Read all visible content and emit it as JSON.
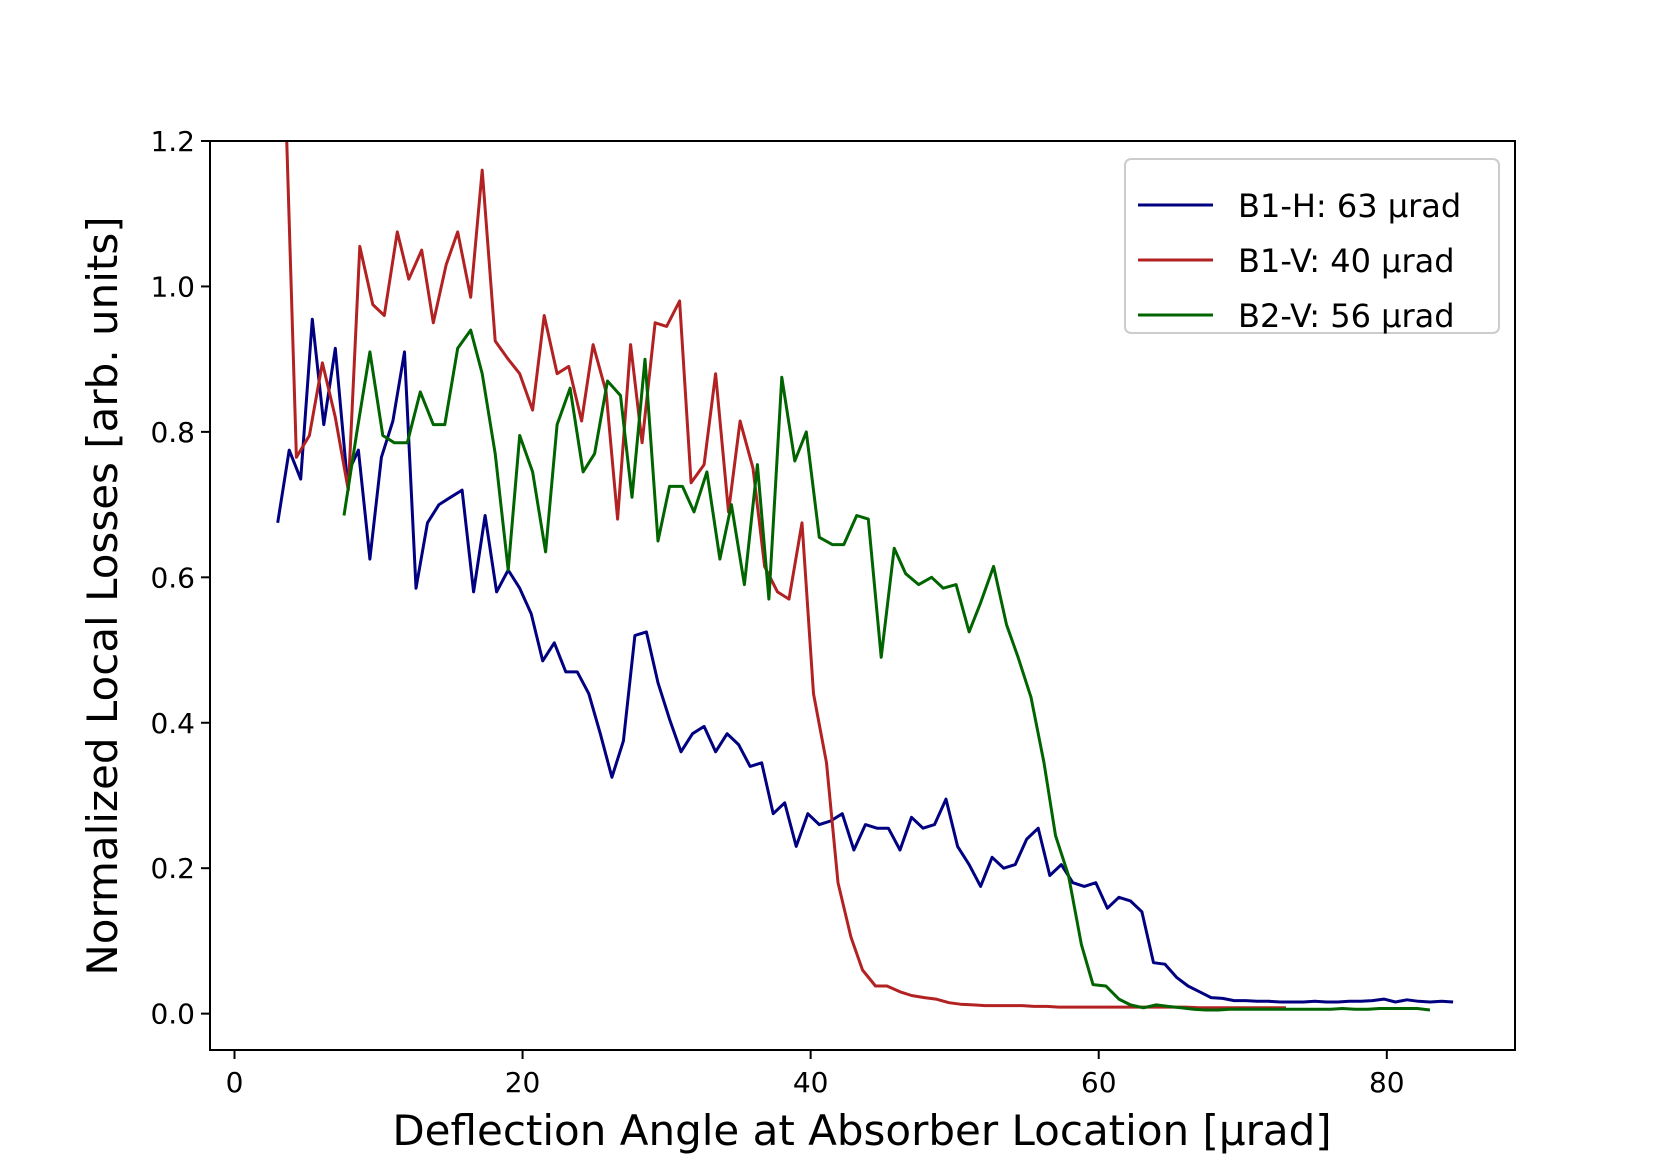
{
  "chart_data": {
    "type": "line",
    "title": "",
    "xlabel": "Deflection Angle at Absorber Location [μrad]",
    "ylabel": "Normalized Local Losses [arb. units]",
    "xlim": [
      -1.7,
      88.9
    ],
    "ylim": [
      -0.05,
      1.2
    ],
    "xticks": [
      0,
      20,
      40,
      60,
      80
    ],
    "yticks": [
      0.0,
      0.2,
      0.4,
      0.6,
      0.8,
      1.0,
      1.2
    ],
    "xtick_labels": [
      "0",
      "20",
      "40",
      "60",
      "80"
    ],
    "ytick_labels": [
      "0.0",
      "0.2",
      "0.4",
      "0.6",
      "0.8",
      "1.0",
      "1.2"
    ],
    "grid": false,
    "legend_position": "top-right",
    "series": [
      {
        "name": "B1-H: 63 μrad",
        "color": "#000080",
        "points": [
          [
            3.0,
            0.675
          ],
          [
            3.8,
            0.775
          ],
          [
            4.6,
            0.735
          ],
          [
            5.4,
            0.955
          ],
          [
            6.2,
            0.81
          ],
          [
            7.0,
            0.915
          ],
          [
            7.8,
            0.74
          ],
          [
            8.6,
            0.775
          ],
          [
            9.4,
            0.625
          ],
          [
            10.2,
            0.765
          ],
          [
            11.0,
            0.815
          ],
          [
            11.8,
            0.91
          ],
          [
            12.6,
            0.585
          ],
          [
            13.4,
            0.675
          ],
          [
            14.2,
            0.7
          ],
          [
            15.0,
            0.71
          ],
          [
            15.8,
            0.72
          ],
          [
            16.6,
            0.58
          ],
          [
            17.4,
            0.685
          ],
          [
            18.2,
            0.58
          ],
          [
            19.0,
            0.61
          ],
          [
            19.8,
            0.585
          ],
          [
            20.6,
            0.55
          ],
          [
            21.4,
            0.485
          ],
          [
            22.2,
            0.51
          ],
          [
            23.0,
            0.47
          ],
          [
            23.8,
            0.47
          ],
          [
            24.6,
            0.44
          ],
          [
            25.4,
            0.385
          ],
          [
            26.2,
            0.325
          ],
          [
            27.0,
            0.375
          ],
          [
            27.8,
            0.52
          ],
          [
            28.6,
            0.525
          ],
          [
            29.4,
            0.455
          ],
          [
            30.2,
            0.405
          ],
          [
            31.0,
            0.36
          ],
          [
            31.8,
            0.385
          ],
          [
            32.6,
            0.395
          ],
          [
            33.4,
            0.36
          ],
          [
            34.2,
            0.385
          ],
          [
            35.0,
            0.37
          ],
          [
            35.8,
            0.34
          ],
          [
            36.6,
            0.345
          ],
          [
            37.4,
            0.275
          ],
          [
            38.2,
            0.29
          ],
          [
            39.0,
            0.23
          ],
          [
            39.8,
            0.275
          ],
          [
            40.6,
            0.26
          ],
          [
            41.4,
            0.265
          ],
          [
            42.2,
            0.275
          ],
          [
            43.0,
            0.225
          ],
          [
            43.8,
            0.26
          ],
          [
            44.6,
            0.255
          ],
          [
            45.4,
            0.255
          ],
          [
            46.2,
            0.225
          ],
          [
            47.0,
            0.27
          ],
          [
            47.8,
            0.255
          ],
          [
            48.6,
            0.26
          ],
          [
            49.4,
            0.295
          ],
          [
            50.2,
            0.23
          ],
          [
            51.0,
            0.205
          ],
          [
            51.8,
            0.175
          ],
          [
            52.6,
            0.215
          ],
          [
            53.4,
            0.2
          ],
          [
            54.2,
            0.205
          ],
          [
            55.0,
            0.24
          ],
          [
            55.8,
            0.255
          ],
          [
            56.6,
            0.19
          ],
          [
            57.4,
            0.205
          ],
          [
            58.2,
            0.18
          ],
          [
            59.0,
            0.175
          ],
          [
            59.8,
            0.18
          ],
          [
            60.6,
            0.145
          ],
          [
            61.4,
            0.16
          ],
          [
            62.2,
            0.155
          ],
          [
            63.0,
            0.14
          ],
          [
            63.8,
            0.07
          ],
          [
            64.6,
            0.068
          ],
          [
            65.4,
            0.05
          ],
          [
            66.2,
            0.038
          ],
          [
            67.0,
            0.03
          ],
          [
            67.8,
            0.022
          ],
          [
            68.6,
            0.021
          ],
          [
            69.4,
            0.018
          ],
          [
            70.2,
            0.018
          ],
          [
            71.0,
            0.017
          ],
          [
            71.8,
            0.017
          ],
          [
            72.6,
            0.016
          ],
          [
            73.4,
            0.016
          ],
          [
            74.2,
            0.016
          ],
          [
            75.0,
            0.017
          ],
          [
            75.8,
            0.016
          ],
          [
            76.6,
            0.016
          ],
          [
            77.4,
            0.017
          ],
          [
            78.2,
            0.017
          ],
          [
            79.0,
            0.018
          ],
          [
            79.8,
            0.02
          ],
          [
            80.6,
            0.016
          ],
          [
            81.4,
            0.019
          ],
          [
            82.2,
            0.017
          ],
          [
            83.0,
            0.016
          ],
          [
            83.8,
            0.017
          ],
          [
            84.6,
            0.016
          ]
        ]
      },
      {
        "name": "B1-V: 40 μrad",
        "color": "#b22222",
        "points": [
          [
            3.6,
            1.22
          ],
          [
            4.3,
            0.765
          ],
          [
            5.2,
            0.795
          ],
          [
            6.1,
            0.895
          ],
          [
            7.0,
            0.82
          ],
          [
            7.9,
            0.72
          ],
          [
            8.7,
            1.055
          ],
          [
            9.6,
            0.975
          ],
          [
            10.4,
            0.96
          ],
          [
            11.3,
            1.075
          ],
          [
            12.1,
            1.01
          ],
          [
            13.0,
            1.05
          ],
          [
            13.8,
            0.95
          ],
          [
            14.7,
            1.03
          ],
          [
            15.5,
            1.075
          ],
          [
            16.4,
            0.985
          ],
          [
            17.2,
            1.16
          ],
          [
            18.1,
            0.925
          ],
          [
            19.0,
            0.9
          ],
          [
            19.8,
            0.88
          ],
          [
            20.7,
            0.83
          ],
          [
            21.5,
            0.96
          ],
          [
            22.4,
            0.88
          ],
          [
            23.2,
            0.89
          ],
          [
            24.1,
            0.815
          ],
          [
            24.9,
            0.92
          ],
          [
            25.8,
            0.855
          ],
          [
            26.6,
            0.68
          ],
          [
            27.5,
            0.92
          ],
          [
            28.3,
            0.785
          ],
          [
            29.2,
            0.95
          ],
          [
            30.0,
            0.945
          ],
          [
            30.9,
            0.98
          ],
          [
            31.7,
            0.73
          ],
          [
            32.6,
            0.755
          ],
          [
            33.4,
            0.88
          ],
          [
            34.3,
            0.69
          ],
          [
            35.1,
            0.815
          ],
          [
            36.0,
            0.75
          ],
          [
            36.8,
            0.615
          ],
          [
            37.7,
            0.58
          ],
          [
            38.5,
            0.57
          ],
          [
            39.4,
            0.675
          ],
          [
            40.2,
            0.44
          ],
          [
            41.1,
            0.345
          ],
          [
            41.9,
            0.18
          ],
          [
            42.8,
            0.105
          ],
          [
            43.6,
            0.06
          ],
          [
            44.5,
            0.038
          ],
          [
            45.3,
            0.038
          ],
          [
            46.2,
            0.03
          ],
          [
            47.0,
            0.025
          ],
          [
            47.9,
            0.022
          ],
          [
            48.7,
            0.02
          ],
          [
            49.6,
            0.015
          ],
          [
            50.4,
            0.013
          ],
          [
            51.3,
            0.012
          ],
          [
            52.1,
            0.011
          ],
          [
            53.0,
            0.011
          ],
          [
            53.8,
            0.011
          ],
          [
            54.7,
            0.011
          ],
          [
            55.5,
            0.01
          ],
          [
            56.4,
            0.01
          ],
          [
            57.2,
            0.009
          ],
          [
            58.1,
            0.009
          ],
          [
            58.9,
            0.009
          ],
          [
            59.8,
            0.009
          ],
          [
            60.6,
            0.009
          ],
          [
            61.5,
            0.009
          ],
          [
            62.3,
            0.009
          ],
          [
            63.2,
            0.009
          ],
          [
            64.0,
            0.009
          ],
          [
            65.0,
            0.009
          ],
          [
            66.0,
            0.009
          ],
          [
            67.0,
            0.008
          ],
          [
            68.0,
            0.008
          ],
          [
            69.0,
            0.008
          ],
          [
            70.0,
            0.008
          ],
          [
            71.0,
            0.008
          ],
          [
            72.0,
            0.008
          ],
          [
            73.0,
            0.008
          ]
        ]
      },
      {
        "name": "B2-V: 56 μrad",
        "color": "#006400",
        "points": [
          [
            7.6,
            0.685
          ],
          [
            8.5,
            0.8
          ],
          [
            9.4,
            0.91
          ],
          [
            10.3,
            0.795
          ],
          [
            11.1,
            0.785
          ],
          [
            12.0,
            0.785
          ],
          [
            12.9,
            0.855
          ],
          [
            13.8,
            0.81
          ],
          [
            14.6,
            0.81
          ],
          [
            15.5,
            0.915
          ],
          [
            16.4,
            0.94
          ],
          [
            17.2,
            0.88
          ],
          [
            18.1,
            0.77
          ],
          [
            19.0,
            0.61
          ],
          [
            19.8,
            0.795
          ],
          [
            20.7,
            0.745
          ],
          [
            21.6,
            0.635
          ],
          [
            22.4,
            0.81
          ],
          [
            23.3,
            0.86
          ],
          [
            24.2,
            0.745
          ],
          [
            25.0,
            0.77
          ],
          [
            25.9,
            0.87
          ],
          [
            26.8,
            0.85
          ],
          [
            27.6,
            0.71
          ],
          [
            28.5,
            0.9
          ],
          [
            29.4,
            0.65
          ],
          [
            30.2,
            0.725
          ],
          [
            31.1,
            0.725
          ],
          [
            31.9,
            0.69
          ],
          [
            32.8,
            0.745
          ],
          [
            33.7,
            0.625
          ],
          [
            34.5,
            0.7
          ],
          [
            35.4,
            0.59
          ],
          [
            36.3,
            0.755
          ],
          [
            37.1,
            0.57
          ],
          [
            38.0,
            0.875
          ],
          [
            38.9,
            0.76
          ],
          [
            39.7,
            0.8
          ],
          [
            40.6,
            0.655
          ],
          [
            41.5,
            0.645
          ],
          [
            42.3,
            0.645
          ],
          [
            43.2,
            0.685
          ],
          [
            44.0,
            0.68
          ],
          [
            44.9,
            0.49
          ],
          [
            45.8,
            0.64
          ],
          [
            46.6,
            0.605
          ],
          [
            47.5,
            0.59
          ],
          [
            48.4,
            0.6
          ],
          [
            49.2,
            0.585
          ],
          [
            50.1,
            0.59
          ],
          [
            51.0,
            0.525
          ],
          [
            51.8,
            0.565
          ],
          [
            52.7,
            0.615
          ],
          [
            53.6,
            0.535
          ],
          [
            54.4,
            0.49
          ],
          [
            55.3,
            0.435
          ],
          [
            56.2,
            0.345
          ],
          [
            57.0,
            0.245
          ],
          [
            57.9,
            0.19
          ],
          [
            58.8,
            0.095
          ],
          [
            59.6,
            0.04
          ],
          [
            60.5,
            0.038
          ],
          [
            61.4,
            0.02
          ],
          [
            62.2,
            0.012
          ],
          [
            63.1,
            0.008
          ],
          [
            64.0,
            0.012
          ],
          [
            64.8,
            0.01
          ],
          [
            65.7,
            0.008
          ],
          [
            66.6,
            0.006
          ],
          [
            67.4,
            0.005
          ],
          [
            68.3,
            0.005
          ],
          [
            69.1,
            0.006
          ],
          [
            70.0,
            0.006
          ],
          [
            70.9,
            0.006
          ],
          [
            71.7,
            0.006
          ],
          [
            72.6,
            0.006
          ],
          [
            73.5,
            0.006
          ],
          [
            74.3,
            0.006
          ],
          [
            75.2,
            0.006
          ],
          [
            76.1,
            0.006
          ],
          [
            76.9,
            0.007
          ],
          [
            77.8,
            0.006
          ],
          [
            78.7,
            0.006
          ],
          [
            79.5,
            0.007
          ],
          [
            80.4,
            0.007
          ],
          [
            81.3,
            0.007
          ],
          [
            82.1,
            0.007
          ],
          [
            83.0,
            0.005
          ]
        ]
      }
    ]
  }
}
